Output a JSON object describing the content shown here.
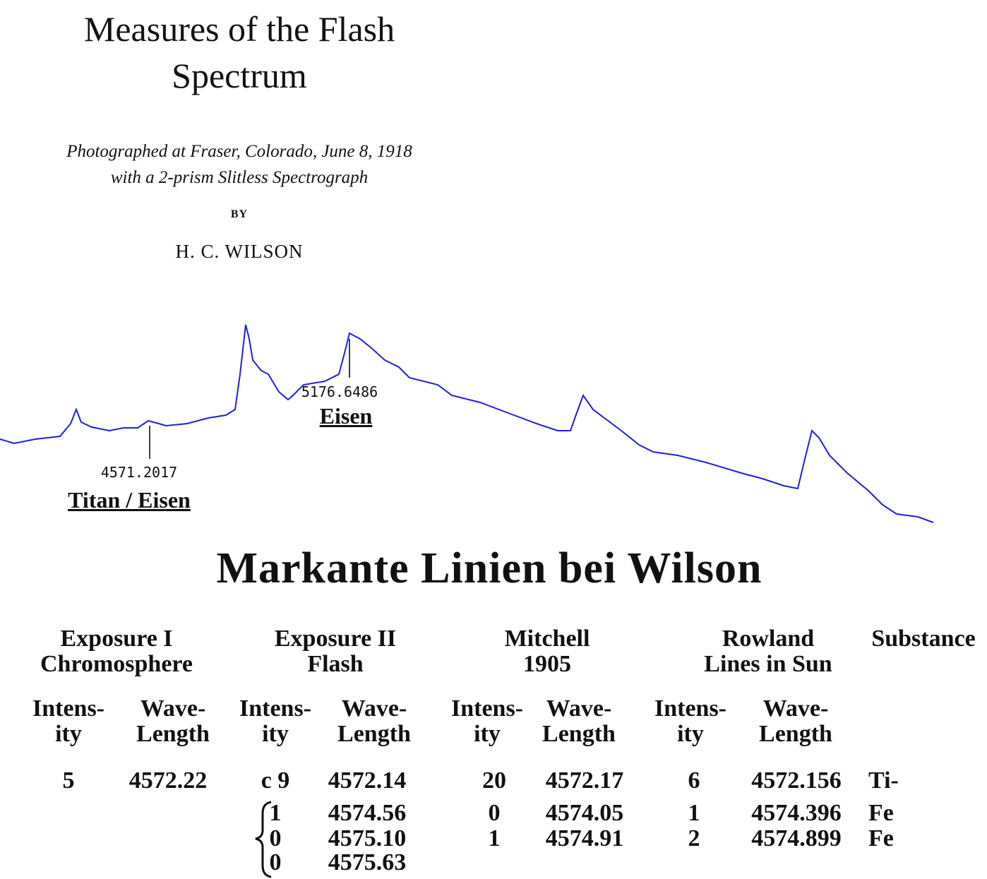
{
  "header": {
    "title_lines": [
      "Measures of the Flash",
      "Spectrum"
    ],
    "subtitle_lines": [
      "Photographed at Fraser, Colorado, June 8, 1918",
      "with a 2-prism Slitless Spectrograph"
    ],
    "by": "BY",
    "author": "H. C. WILSON"
  },
  "spectrum": {
    "annotations": [
      {
        "wavelength": "4571.2017",
        "element": "Titan / Eisen"
      },
      {
        "wavelength": "5176.6486",
        "element": "Eisen"
      }
    ]
  },
  "section_title": "Markante Linien bei Wilson",
  "table": {
    "groups": [
      [
        "Exposure I",
        "Chromosphere"
      ],
      [
        "Exposure II",
        "Flash"
      ],
      [
        "Mitchell",
        "1905"
      ],
      [
        "Rowland",
        "Lines in Sun"
      ],
      [
        "Substance"
      ]
    ],
    "subheaders": [
      [
        "Intens-",
        "ity"
      ],
      [
        "Wave-",
        "Length"
      ],
      [
        "Intens-",
        "ity"
      ],
      [
        "Wave-",
        "Length"
      ],
      [
        "Intens-",
        "ity"
      ],
      [
        "Wave-",
        "Length"
      ],
      [
        "Intens-",
        "ity"
      ],
      [
        "Wave-",
        "Length"
      ]
    ],
    "rows": [
      [
        "5",
        "4572.22",
        "c 9",
        "4572.14",
        "20",
        "4572.17",
        "6",
        "4572.156",
        "Ti-"
      ],
      [
        null,
        null,
        "1",
        "4574.56",
        "0",
        "4574.05",
        "1",
        "4574.396",
        "Fe"
      ],
      [
        null,
        null,
        "0",
        "4575.10",
        "1",
        "4574.91",
        "2",
        "4574.899",
        "Fe"
      ],
      [
        null,
        null,
        "0",
        "4575.63",
        null,
        null,
        null,
        null,
        null
      ]
    ]
  }
}
